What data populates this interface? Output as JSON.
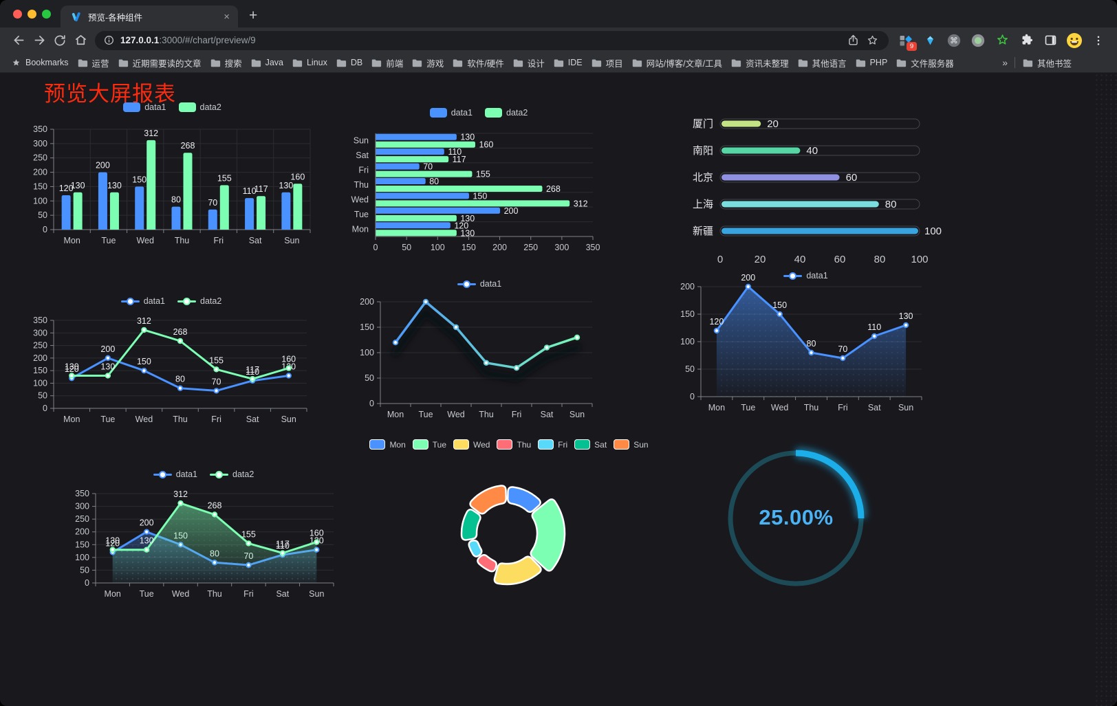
{
  "browser": {
    "tab": {
      "title": "预览-各种组件",
      "close_label": "×"
    },
    "new_tab_label": "+",
    "url_host": "127.0.0.1",
    "url_rest": ":3000/#/chart/preview/9",
    "bookmarks_label": "Bookmarks",
    "bookmarks": [
      "运营",
      "近期需要读的文章",
      "搜索",
      "Java",
      "Linux",
      "DB",
      "前端",
      "游戏",
      "软件/硬件",
      "设计",
      "IDE",
      "项目",
      "网站/博客/文章/工具",
      "资讯未整理",
      "其他语言",
      "PHP",
      "文件服务器"
    ],
    "overflow_symbol": "»",
    "other_bookmarks": "其他书签",
    "extension_badge": "9"
  },
  "page": {
    "title": "预览大屏报表",
    "title_color": "#fb2b0f",
    "background": "#18181d"
  },
  "chart_data": [
    {
      "id": "grouped-bar",
      "type": "bar",
      "categories": [
        "Mon",
        "Tue",
        "Wed",
        "Thu",
        "Fri",
        "Sat",
        "Sun"
      ],
      "series": [
        {
          "name": "data1",
          "color": "#4992ff",
          "values": [
            120,
            200,
            150,
            80,
            70,
            110,
            130
          ]
        },
        {
          "name": "data2",
          "color": "#7cffb2",
          "values": [
            130,
            130,
            312,
            268,
            155,
            117,
            160
          ]
        }
      ],
      "ylim": [
        0,
        350
      ],
      "ystep": 50,
      "grid": true,
      "legend_position": "top"
    },
    {
      "id": "horizontal-bar",
      "type": "hbar",
      "categories": [
        "Mon",
        "Tue",
        "Wed",
        "Thu",
        "Fri",
        "Sat",
        "Sun"
      ],
      "series": [
        {
          "name": "data1",
          "color": "#4992ff",
          "values": [
            120,
            200,
            150,
            80,
            70,
            110,
            130
          ]
        },
        {
          "name": "data2",
          "color": "#7cffb2",
          "values": [
            130,
            130,
            312,
            268,
            155,
            117,
            160
          ]
        }
      ],
      "xlim": [
        0,
        350
      ],
      "xstep": 50,
      "legend_position": "top"
    },
    {
      "id": "progress-bars",
      "type": "progress",
      "max": 100,
      "axis_ticks": [
        0,
        20,
        40,
        60,
        80,
        100
      ],
      "rows": [
        {
          "label": "厦门",
          "value": 20,
          "color": "#c4e385"
        },
        {
          "label": "南阳",
          "value": 40,
          "color": "#55d6a4"
        },
        {
          "label": "北京",
          "value": 60,
          "color": "#8f90e1"
        },
        {
          "label": "上海",
          "value": 80,
          "color": "#7adede"
        },
        {
          "label": "新疆",
          "value": 100,
          "color": "#38a3dd"
        }
      ],
      "track_color": "#44474d"
    },
    {
      "id": "dual-line",
      "type": "line",
      "categories": [
        "Mon",
        "Tue",
        "Wed",
        "Thu",
        "Fri",
        "Sat",
        "Sun"
      ],
      "series": [
        {
          "name": "data1",
          "color": "#4992ff",
          "values": [
            120,
            200,
            150,
            80,
            70,
            110,
            130
          ]
        },
        {
          "name": "data2",
          "color": "#7cffb2",
          "values": [
            130,
            130,
            312,
            268,
            155,
            117,
            160
          ]
        }
      ],
      "ylim": [
        0,
        350
      ],
      "ystep": 50,
      "value_labels": true,
      "legend_position": "top"
    },
    {
      "id": "gradient-line",
      "type": "line",
      "categories": [
        "Mon",
        "Tue",
        "Wed",
        "Thu",
        "Fri",
        "Sat",
        "Sun"
      ],
      "series": [
        {
          "name": "data1",
          "color": "#4992ff",
          "gradient": [
            "#4992ff",
            "#7cffb2"
          ],
          "shadow": true,
          "values": [
            120,
            200,
            150,
            80,
            70,
            110,
            130
          ]
        }
      ],
      "ylim": [
        0,
        200
      ],
      "ystep": 50,
      "value_labels": false,
      "legend_position": "top"
    },
    {
      "id": "area-line-single",
      "type": "line",
      "categories": [
        "Mon",
        "Tue",
        "Wed",
        "Thu",
        "Fri",
        "Sat",
        "Sun"
      ],
      "series": [
        {
          "name": "data1",
          "color": "#4992ff",
          "area": true,
          "values": [
            120,
            200,
            150,
            80,
            70,
            110,
            130
          ]
        }
      ],
      "ylim": [
        0,
        200
      ],
      "ystep": 50,
      "value_labels": true,
      "legend_position": "top"
    },
    {
      "id": "area-line-dual",
      "type": "line",
      "categories": [
        "Mon",
        "Tue",
        "Wed",
        "Thu",
        "Fri",
        "Sat",
        "Sun"
      ],
      "series": [
        {
          "name": "data1",
          "color": "#4992ff",
          "area": true,
          "values": [
            120,
            200,
            150,
            80,
            70,
            110,
            130
          ]
        },
        {
          "name": "data2",
          "color": "#7cffb2",
          "area": true,
          "values": [
            130,
            130,
            312,
            268,
            155,
            117,
            160
          ]
        }
      ],
      "ylim": [
        0,
        350
      ],
      "ystep": 50,
      "value_labels": true,
      "legend_position": "top"
    },
    {
      "id": "rose-donut",
      "type": "rose",
      "categories": [
        "Mon",
        "Tue",
        "Wed",
        "Thu",
        "Fri",
        "Sat",
        "Sun"
      ],
      "values": [
        120,
        200,
        150,
        80,
        70,
        110,
        130
      ],
      "colors": [
        "#4992ff",
        "#7cffb2",
        "#fddd60",
        "#ff6e76",
        "#58d9f9",
        "#05c091",
        "#ff8a45"
      ],
      "inner_radius": 44,
      "legend_position": "top"
    },
    {
      "id": "ring-gauge",
      "type": "gauge",
      "value": 25,
      "label": "25.00%",
      "color": "#1caee8",
      "track_color": "#1c4b57"
    }
  ]
}
